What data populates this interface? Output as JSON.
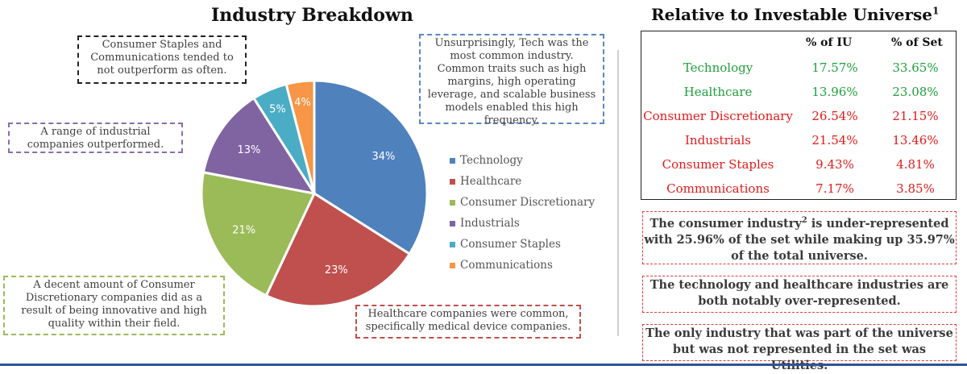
{
  "left_title": "Industry Breakdown",
  "right_title": "Relative to Investable Universe",
  "right_title_sup": "1",
  "notes": {
    "staples": "Consumer Staples and Communications tended to not outperform as often.",
    "tech": "Unsurprisingly, Tech was the most common industry. Common traits such as high margins, high operating leverage, and scalable business models enabled this  high frequency.",
    "industrials": "A range of industrial companies outperformed.",
    "discretionary": "A decent amount of Consumer Discretionary companies did as a result of being innovative and high quality within their field.",
    "healthcare": "Healthcare companies were common, specifically medical device companies."
  },
  "chart_data": {
    "type": "pie",
    "title": "Industry Breakdown",
    "categories": [
      "Technology",
      "Healthcare",
      "Consumer Discretionary",
      "Industrials",
      "Consumer Staples",
      "Communications"
    ],
    "values": [
      34,
      23,
      21,
      13,
      5,
      4
    ],
    "labels": [
      "34%",
      "23%",
      "21%",
      "13%",
      "5%",
      "4%"
    ],
    "colors": [
      "#4f81bd",
      "#c0504d",
      "#9bbb59",
      "#8064a2",
      "#4bacc6",
      "#f79646"
    ],
    "legend_position": "right"
  },
  "table": {
    "headers": [
      "% of IU",
      "% of Set"
    ],
    "rows": [
      {
        "name": "Technology",
        "iu": "17.57%",
        "set": "33.65%",
        "color": "#1fa03c"
      },
      {
        "name": "Healthcare",
        "iu": "13.96%",
        "set": "23.08%",
        "color": "#1fa03c"
      },
      {
        "name": "Consumer Discretionary",
        "iu": "26.54%",
        "set": "21.15%",
        "color": "#e01b1b"
      },
      {
        "name": "Industrials",
        "iu": "21.54%",
        "set": "13.46%",
        "color": "#e01b1b"
      },
      {
        "name": "Consumer Staples",
        "iu": "9.43%",
        "set": "4.81%",
        "color": "#e01b1b"
      },
      {
        "name": "Communications",
        "iu": "7.17%",
        "set": "3.85%",
        "color": "#e01b1b"
      }
    ]
  },
  "callouts": {
    "c1_a": "The consumer industry",
    "c1_sup": "2",
    "c1_b": " is under-represented with 25.96% of the set while making up 35.97% of the total universe.",
    "c2": "The technology and healthcare industries are both notably over-represented.",
    "c3": "The only industry that was part of the universe but was not represented in the set was Utilities."
  }
}
